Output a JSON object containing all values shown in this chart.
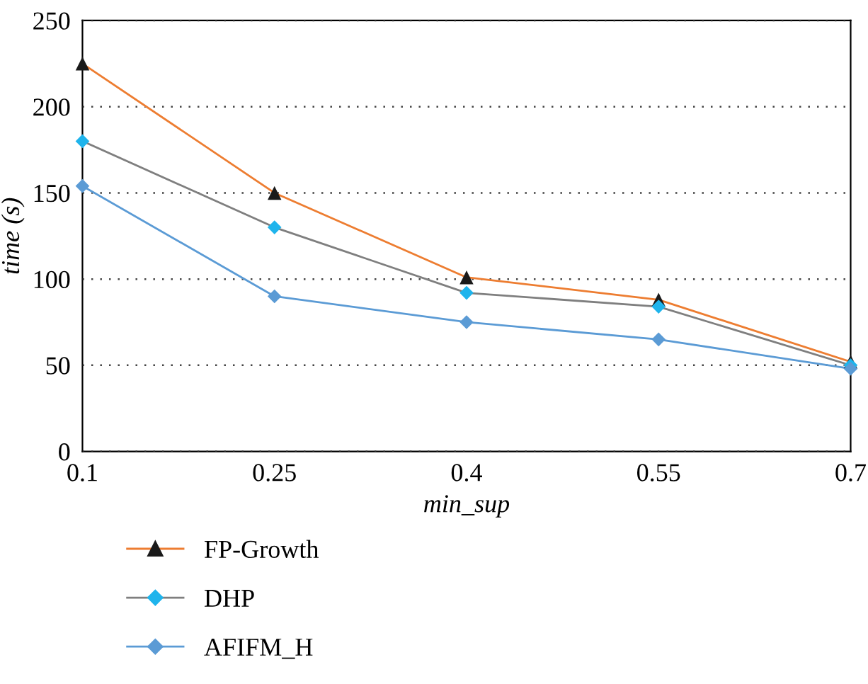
{
  "chart_data": {
    "type": "line",
    "xlabel": "min_sup",
    "ylabel": "time (s)",
    "x": [
      0.1,
      0.25,
      0.4,
      0.55,
      0.7
    ],
    "series": [
      {
        "name": "FP-Growth",
        "color": "#ed7d31",
        "colors": [
          "#1a1a1a",
          "#1a1a1a",
          "#1a1a1a",
          "#1a1a1a",
          "#1a1a1a"
        ],
        "marker": "triangle",
        "values": [
          225,
          150,
          101,
          88,
          52
        ]
      },
      {
        "name": "DHP",
        "color": "#7f7f7f",
        "colors": [
          "#1fb4ec",
          "#1fb4ec",
          "#1fb4ec",
          "#1fb4ec",
          "#1fb4ec"
        ],
        "marker": "diamond",
        "values": [
          180,
          130,
          92,
          84,
          50
        ]
      },
      {
        "name": "AFIFM_H",
        "color": "#5b9bd5",
        "colors": [
          "#5b9bd5",
          "#5b9bd5",
          "#5b9bd5",
          "#5b9bd5",
          "#5b9bd5"
        ],
        "marker": "diamond",
        "values": [
          154,
          90,
          75,
          65,
          48
        ]
      }
    ],
    "xlim": [
      0.1,
      0.7
    ],
    "xticks": [
      0.1,
      0.25,
      0.4,
      0.55,
      0.7
    ],
    "ylim": [
      0,
      250
    ],
    "yticks": [
      0,
      50,
      100,
      150,
      200,
      250
    ],
    "grid": "y",
    "legend": "bottom left",
    "line_style": "solid"
  }
}
